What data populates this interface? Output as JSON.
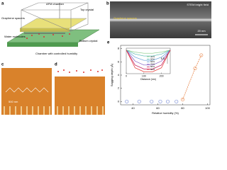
{
  "panels": {
    "a": {
      "label": "a",
      "texts": [
        "AFM chamber",
        "Top crystal",
        "Graphene spacers",
        "Water molecules",
        "Bottom crystal",
        "Chamber with controlled humidity"
      ]
    },
    "b": {
      "label": "b",
      "title": "STEM bright field",
      "annotation": "Graphene spacers",
      "scale": "20 nm"
    },
    "c": {
      "label": "c",
      "scale": "500 nm"
    },
    "d": {
      "label": "d"
    },
    "e": {
      "label": "e"
    }
  },
  "chart_data": {
    "type": "scatter",
    "x_label": "Relative humidity (%)",
    "y_label": "Sagging depth (Å)",
    "x": [
      35,
      45,
      55,
      62,
      68,
      75,
      80,
      90,
      95
    ],
    "values": [
      0,
      0,
      0,
      0,
      0,
      0,
      0.3,
      5,
      7
    ],
    "color": "#6a7fd0",
    "rise_color": "#e8864a",
    "xlim": [
      30,
      102
    ],
    "xticks": [
      40,
      60,
      80,
      100
    ],
    "ylim": [
      -0.5,
      8.5
    ],
    "yticks": [
      0,
      2,
      4,
      6,
      8
    ],
    "inset": {
      "type": "line",
      "x_label": "Distance (nm)",
      "scale": "5 Å",
      "x": [
        0,
        50,
        100,
        150,
        200,
        250
      ],
      "xlim": [
        0,
        250
      ],
      "xticks": [
        0,
        100,
        200
      ],
      "ylim": [
        -6,
        0.5
      ],
      "series": [
        {
          "name": "30%",
          "color": "#7fc97f",
          "values": [
            0,
            -0.5,
            -0.8,
            -0.8,
            -0.5,
            0
          ]
        },
        {
          "name": "50%",
          "color": "#4db6ac",
          "values": [
            0,
            -1,
            -1.5,
            -1.5,
            -1,
            0
          ]
        },
        {
          "name": "60%",
          "color": "#5c9bd5",
          "values": [
            0,
            -1.8,
            -2.6,
            -2.6,
            -1.8,
            0
          ]
        },
        {
          "name": "70%",
          "color": "#7e57c2",
          "values": [
            0,
            -2.8,
            -3.8,
            -3.8,
            -2.8,
            0
          ]
        },
        {
          "name": "80%",
          "color": "#c2185b",
          "values": [
            0,
            -3.8,
            -4.8,
            -4.8,
            -3.8,
            0
          ]
        },
        {
          "name": "90%",
          "color": "#e53935",
          "values": [
            0,
            -4.5,
            -5.5,
            -5.5,
            -4.5,
            0
          ]
        }
      ]
    }
  }
}
